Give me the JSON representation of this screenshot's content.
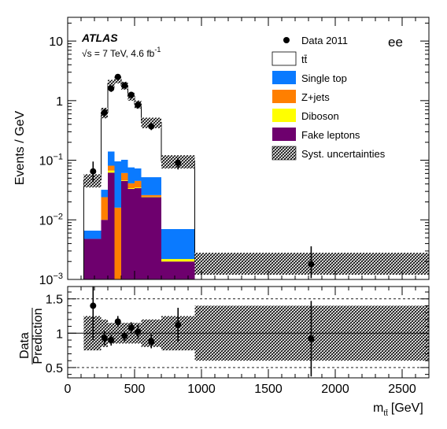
{
  "chart_data": [
    {
      "type": "bar",
      "panel": "main",
      "y_scale": "log",
      "ylim": [
        0.001,
        25
      ],
      "xlim": [
        0,
        2700
      ],
      "ylabel": "Events / GeV",
      "y_tick_labels": [
        {
          "value": 10,
          "base": "10",
          "exp": ""
        },
        {
          "value": 1,
          "base": "1",
          "exp": ""
        },
        {
          "value": 0.1,
          "base": "10",
          "exp": "−1"
        },
        {
          "value": 0.01,
          "base": "10",
          "exp": "−2"
        },
        {
          "value": 0.001,
          "base": "10",
          "exp": "−3"
        }
      ],
      "experiment": "ATLAS",
      "energy_label": "√s = 7 TeV, 4.6 fb",
      "lumi_exponent": "-1",
      "channel": "ee",
      "legend": {
        "placement": "top-right",
        "data": "Data 2011",
        "ttbar": "tt̄",
        "single_top": "Single top",
        "zjets": "Z+jets",
        "diboson": "Diboson",
        "fake": "Fake leptons",
        "syst": "Syst. uncertainties"
      },
      "colors": {
        "ttbar": "#ffffff",
        "single_top": "#0a7aff",
        "zjets": "#ff7f00",
        "diboson": "#ffff00",
        "fake": "#6e006e"
      },
      "bins": [
        {
          "lo": 120,
          "hi": 250,
          "fake": 0.0048,
          "diboson": 0.0,
          "zjets": 0.0,
          "single_top": 0.0018,
          "ttbar": 0.04,
          "unc": 0.25
        },
        {
          "lo": 250,
          "hi": 300,
          "fake": 0.01,
          "diboson": 0.0,
          "zjets": 0.014,
          "single_top": 0.008,
          "ttbar": 0.6,
          "unc": 0.2
        },
        {
          "lo": 300,
          "hi": 350,
          "fake": 0.062,
          "diboson": 0.005,
          "zjets": 0.014,
          "single_top": 0.059,
          "ttbar": 1.8,
          "unc": 0.15
        },
        {
          "lo": 350,
          "hi": 400,
          "fake": 0.0,
          "diboson": 0.001,
          "zjets": 0.015,
          "single_top": 0.08,
          "ttbar": 2.2,
          "unc": 0.15
        },
        {
          "lo": 400,
          "hi": 450,
          "fake": 0.045,
          "diboson": 0.001,
          "zjets": 0.015,
          "single_top": 0.041,
          "ttbar": 1.7,
          "unc": 0.15
        },
        {
          "lo": 450,
          "hi": 500,
          "fake": 0.033,
          "diboson": 0.001,
          "zjets": 0.007,
          "single_top": 0.035,
          "ttbar": 1.1,
          "unc": 0.15
        },
        {
          "lo": 500,
          "hi": 550,
          "fake": 0.034,
          "diboson": 0.001,
          "zjets": 0.01,
          "single_top": 0.028,
          "ttbar": 0.8,
          "unc": 0.15
        },
        {
          "lo": 550,
          "hi": 700,
          "fake": 0.024,
          "diboson": 0.0005,
          "zjets": 0.0015,
          "single_top": 0.026,
          "ttbar": 0.38,
          "unc": 0.2
        },
        {
          "lo": 700,
          "hi": 950,
          "fake": 0.002,
          "diboson": 0.0002,
          "zjets": 0.0,
          "single_top": 0.0048,
          "ttbar": 0.09,
          "unc": 0.25
        },
        {
          "lo": 950,
          "hi": 2700,
          "fake": 0.0,
          "diboson": 0.0,
          "zjets": 0.0,
          "single_top": 0.0,
          "ttbar": 0.002,
          "unc": 0.4
        }
      ],
      "data_points": [
        {
          "x": 190,
          "y": 0.065,
          "yerr_lo": 0.022,
          "yerr_hi": 0.03
        },
        {
          "x": 275,
          "y": 0.63,
          "yerr_lo": 0.1,
          "yerr_hi": 0.1
        },
        {
          "x": 325,
          "y": 1.6,
          "yerr_lo": 0.2,
          "yerr_hi": 0.2
        },
        {
          "x": 375,
          "y": 2.5,
          "yerr_lo": 0.25,
          "yerr_hi": 0.25
        },
        {
          "x": 425,
          "y": 1.8,
          "yerr_lo": 0.2,
          "yerr_hi": 0.2
        },
        {
          "x": 475,
          "y": 1.25,
          "yerr_lo": 0.15,
          "yerr_hi": 0.15
        },
        {
          "x": 525,
          "y": 0.85,
          "yerr_lo": 0.12,
          "yerr_hi": 0.12
        },
        {
          "x": 625,
          "y": 0.37,
          "yerr_lo": 0.05,
          "yerr_hi": 0.05
        },
        {
          "x": 825,
          "y": 0.09,
          "yerr_lo": 0.02,
          "yerr_hi": 0.02
        },
        {
          "x": 1820,
          "y": 0.0018,
          "yerr_lo": 0.0012,
          "yerr_hi": 0.0018
        }
      ]
    },
    {
      "type": "scatter",
      "panel": "ratio",
      "ylabel_top": "Data",
      "ylabel_bottom": "Prediction",
      "xlabel": "m",
      "xlabel_sub": "tt̄",
      "xlabel_unit": "[GeV]",
      "xlim": [
        0,
        2700
      ],
      "ylim": [
        0.35,
        1.68
      ],
      "y_ticks": [
        0.5,
        1,
        1.5
      ],
      "y_tick_labels": [
        "0.5",
        "1",
        "1.5"
      ],
      "x_ticks": [
        0,
        500,
        1000,
        1500,
        2000,
        2500
      ],
      "x_tick_labels": [
        "0",
        "500",
        "1000",
        "1500",
        "2000",
        "2500"
      ],
      "points": [
        {
          "x": 190,
          "y": 1.4,
          "yerr": 0.5
        },
        {
          "x": 275,
          "y": 0.93,
          "yerr": 0.1
        },
        {
          "x": 325,
          "y": 0.9,
          "yerr": 0.08
        },
        {
          "x": 375,
          "y": 1.17,
          "yerr": 0.08
        },
        {
          "x": 425,
          "y": 0.96,
          "yerr": 0.07
        },
        {
          "x": 475,
          "y": 1.08,
          "yerr": 0.08
        },
        {
          "x": 525,
          "y": 1.02,
          "yerr": 0.1
        },
        {
          "x": 625,
          "y": 0.88,
          "yerr": 0.1
        },
        {
          "x": 825,
          "y": 1.12,
          "yerr": 0.25
        },
        {
          "x": 1820,
          "y": 0.92,
          "yerr": 0.55
        }
      ]
    }
  ]
}
